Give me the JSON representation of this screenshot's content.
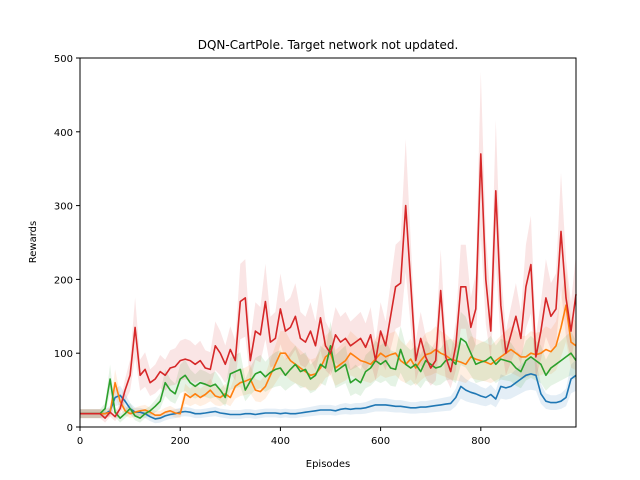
{
  "chart_data": {
    "type": "line",
    "title": "DQN-CartPole. Target network not updated.",
    "xlabel": "Episodes",
    "ylabel": "Rewards",
    "xlim": [
      0,
      990
    ],
    "ylim": [
      0,
      500
    ],
    "xticks": [
      0,
      200,
      400,
      600,
      800
    ],
    "yticks": [
      0,
      100,
      200,
      300,
      400,
      500
    ],
    "grid": false,
    "legend": "none",
    "series": [
      {
        "color": "#1f77b4",
        "x": [
          0,
          10,
          20,
          30,
          40,
          50,
          60,
          70,
          80,
          90,
          100,
          110,
          120,
          130,
          140,
          150,
          160,
          170,
          180,
          190,
          200,
          210,
          220,
          230,
          240,
          250,
          260,
          270,
          280,
          290,
          300,
          310,
          320,
          330,
          340,
          350,
          360,
          370,
          380,
          390,
          400,
          410,
          420,
          430,
          440,
          450,
          460,
          470,
          480,
          490,
          500,
          510,
          520,
          530,
          540,
          550,
          560,
          570,
          580,
          590,
          600,
          610,
          620,
          630,
          640,
          650,
          660,
          670,
          680,
          690,
          700,
          710,
          720,
          730,
          740,
          750,
          760,
          770,
          780,
          790,
          800,
          810,
          820,
          830,
          840,
          850,
          860,
          870,
          880,
          890,
          900,
          910,
          920,
          930,
          940,
          950,
          960,
          970,
          980,
          990
        ],
        "y": [
          18,
          18,
          18,
          18,
          18,
          18,
          22,
          40,
          43,
          35,
          25,
          20,
          20,
          18,
          14,
          11,
          12,
          15,
          17,
          18,
          20,
          21,
          20,
          18,
          18,
          19,
          20,
          21,
          19,
          18,
          17,
          17,
          17,
          18,
          18,
          17,
          18,
          19,
          19,
          19,
          18,
          19,
          18,
          18,
          19,
          20,
          21,
          22,
          23,
          23,
          23,
          22,
          24,
          25,
          24,
          25,
          25,
          26,
          28,
          30,
          30,
          30,
          29,
          28,
          28,
          27,
          26,
          26,
          27,
          27,
          28,
          29,
          30,
          31,
          32,
          40,
          55,
          50,
          47,
          45,
          42,
          40,
          44,
          38,
          55,
          53,
          55,
          60,
          65,
          70,
          72,
          70,
          45,
          35,
          33,
          33,
          35,
          40,
          65,
          70
        ]
      },
      {
        "color": "#ff7f0e",
        "x": [
          0,
          10,
          20,
          30,
          40,
          50,
          60,
          70,
          80,
          90,
          100,
          110,
          120,
          130,
          140,
          150,
          160,
          170,
          180,
          190,
          200,
          210,
          220,
          230,
          240,
          250,
          260,
          270,
          280,
          290,
          300,
          310,
          320,
          330,
          340,
          350,
          360,
          370,
          380,
          390,
          400,
          410,
          420,
          430,
          440,
          450,
          460,
          470,
          480,
          490,
          500,
          510,
          520,
          530,
          540,
          550,
          560,
          570,
          580,
          590,
          600,
          610,
          620,
          630,
          640,
          650,
          660,
          670,
          680,
          690,
          700,
          710,
          720,
          730,
          740,
          750,
          760,
          770,
          780,
          790,
          800,
          810,
          820,
          830,
          840,
          850,
          860,
          870,
          880,
          890,
          900,
          910,
          920,
          930,
          940,
          950,
          960,
          970,
          980,
          990
        ],
        "y": [
          18,
          18,
          18,
          18,
          18,
          18,
          20,
          60,
          35,
          22,
          18,
          20,
          22,
          23,
          20,
          16,
          16,
          20,
          22,
          19,
          18,
          45,
          40,
          45,
          40,
          44,
          50,
          42,
          40,
          45,
          40,
          55,
          60,
          62,
          65,
          50,
          48,
          55,
          70,
          85,
          100,
          100,
          90,
          85,
          80,
          75,
          70,
          72,
          80,
          95,
          100,
          80,
          85,
          90,
          100,
          95,
          90,
          88,
          85,
          92,
          100,
          95,
          98,
          100,
          90,
          85,
          92,
          80,
          90,
          98,
          100,
          105,
          100,
          97,
          92,
          90,
          88,
          85,
          95,
          92,
          90,
          88,
          85,
          90,
          95,
          100,
          105,
          100,
          95,
          95,
          100,
          98,
          100,
          105,
          102,
          110,
          135,
          165,
          115,
          110
        ]
      },
      {
        "color": "#2ca02c",
        "x": [
          0,
          10,
          20,
          30,
          40,
          50,
          60,
          70,
          80,
          90,
          100,
          110,
          120,
          130,
          140,
          150,
          160,
          170,
          180,
          190,
          200,
          210,
          220,
          230,
          240,
          250,
          260,
          270,
          280,
          290,
          300,
          310,
          320,
          330,
          340,
          350,
          360,
          370,
          380,
          390,
          400,
          410,
          420,
          430,
          440,
          450,
          460,
          470,
          480,
          490,
          500,
          510,
          520,
          530,
          540,
          550,
          560,
          570,
          580,
          590,
          600,
          610,
          620,
          630,
          640,
          650,
          660,
          670,
          680,
          690,
          700,
          710,
          720,
          730,
          740,
          750,
          760,
          770,
          780,
          790,
          800,
          810,
          820,
          830,
          840,
          850,
          860,
          870,
          880,
          890,
          900,
          910,
          920,
          930,
          940,
          950,
          960,
          970,
          980,
          990
        ],
        "y": [
          18,
          18,
          18,
          18,
          18,
          25,
          65,
          20,
          12,
          18,
          25,
          15,
          12,
          18,
          22,
          28,
          35,
          60,
          50,
          45,
          65,
          70,
          60,
          55,
          60,
          58,
          55,
          58,
          50,
          40,
          72,
          75,
          78,
          50,
          62,
          72,
          75,
          68,
          74,
          78,
          80,
          70,
          78,
          85,
          75,
          78,
          65,
          70,
          85,
          80,
          110,
          75,
          80,
          85,
          60,
          65,
          60,
          75,
          80,
          90,
          85,
          90,
          80,
          78,
          105,
          85,
          80,
          85,
          75,
          90,
          85,
          80,
          82,
          90,
          92,
          85,
          120,
          115,
          100,
          85,
          88,
          90,
          95,
          85,
          92,
          90,
          88,
          80,
          75,
          90,
          95,
          90,
          85,
          70,
          80,
          85,
          90,
          95,
          100,
          90
        ]
      },
      {
        "color": "#d62728",
        "x": [
          0,
          10,
          20,
          30,
          40,
          50,
          60,
          70,
          80,
          90,
          100,
          110,
          120,
          130,
          140,
          150,
          160,
          170,
          180,
          190,
          200,
          210,
          220,
          230,
          240,
          250,
          260,
          270,
          280,
          290,
          300,
          310,
          320,
          330,
          340,
          350,
          360,
          370,
          380,
          390,
          400,
          410,
          420,
          430,
          440,
          450,
          460,
          470,
          480,
          490,
          500,
          510,
          520,
          530,
          540,
          550,
          560,
          570,
          580,
          590,
          600,
          610,
          620,
          630,
          640,
          650,
          660,
          670,
          680,
          690,
          700,
          710,
          720,
          730,
          740,
          750,
          760,
          770,
          780,
          790,
          800,
          810,
          820,
          830,
          840,
          850,
          860,
          870,
          880,
          890,
          900,
          910,
          920,
          930,
          940,
          950,
          960,
          970,
          980,
          990
        ],
        "y": [
          18,
          18,
          18,
          18,
          18,
          12,
          20,
          14,
          25,
          50,
          70,
          135,
          70,
          78,
          60,
          65,
          75,
          70,
          80,
          82,
          90,
          92,
          90,
          85,
          90,
          80,
          78,
          110,
          100,
          85,
          105,
          90,
          170,
          175,
          90,
          130,
          125,
          170,
          115,
          120,
          160,
          130,
          135,
          150,
          120,
          115,
          130,
          110,
          148,
          110,
          100,
          125,
          115,
          120,
          110,
          115,
          120,
          108,
          125,
          90,
          130,
          110,
          150,
          190,
          195,
          300,
          195,
          90,
          120,
          95,
          80,
          90,
          185,
          95,
          75,
          110,
          190,
          190,
          135,
          160,
          370,
          200,
          130,
          320,
          165,
          100,
          125,
          150,
          120,
          190,
          220,
          95,
          130,
          175,
          150,
          160,
          265,
          175,
          130,
          180
        ]
      }
    ]
  }
}
